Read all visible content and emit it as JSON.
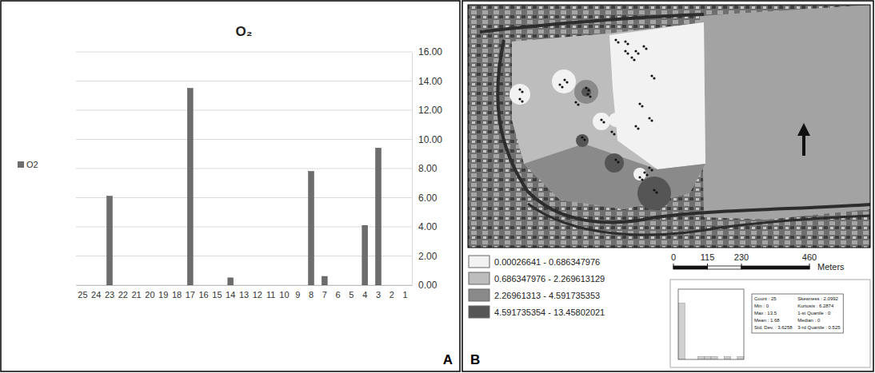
{
  "chart_data": [
    {
      "type": "bar",
      "title": "O₂",
      "categories": [
        "25",
        "24",
        "23",
        "22",
        "21",
        "20",
        "19",
        "18",
        "17",
        "16",
        "15",
        "14",
        "13",
        "12",
        "11",
        "10",
        "9",
        "8",
        "7",
        "6",
        "5",
        "4",
        "3",
        "2",
        "1"
      ],
      "series": [
        {
          "name": "O2",
          "color": "#6d6d6d",
          "values": [
            0,
            0,
            6.1,
            0,
            0,
            0,
            0,
            0,
            13.5,
            0,
            0,
            0.5,
            0,
            0,
            0,
            0,
            0,
            7.8,
            0.6,
            0,
            0,
            4.1,
            9.4,
            0,
            0
          ]
        }
      ],
      "ylim": [
        0,
        16
      ],
      "yticks": [
        {
          "value": 0,
          "label": "0.00"
        },
        {
          "value": 2,
          "label": "2.00"
        },
        {
          "value": 4,
          "label": "4.00"
        },
        {
          "value": 6,
          "label": "6.00"
        },
        {
          "value": 8,
          "label": "8.00"
        },
        {
          "value": 10,
          "label": "10.00"
        },
        {
          "value": 12,
          "label": "12.00"
        },
        {
          "value": 14,
          "label": "14.00"
        },
        {
          "value": 16,
          "label": "16.00"
        }
      ],
      "grid": true,
      "legend": "left"
    },
    {
      "type": "histogram",
      "bins": [
        0,
        1.35,
        2.7,
        4.05,
        5.4,
        6.75,
        8.1,
        9.45,
        10.8,
        12.15,
        13.5
      ],
      "counts": [
        20,
        0,
        0,
        1,
        1,
        1,
        0,
        1,
        0,
        1
      ],
      "color": "#d0d0d0",
      "xlim": [
        0,
        13.5
      ],
      "ylim": [
        0,
        25
      ],
      "tick_labels": false
    }
  ],
  "panels": [
    "A",
    "B"
  ],
  "map": {
    "legend": [
      {
        "label": "0.00026641 - 0.686347976",
        "color": "#f2f2f2"
      },
      {
        "label": "0.686347976 - 2.269613129",
        "color": "#bdbdbd"
      },
      {
        "label": "2.26961313 - 4.591735353",
        "color": "#8a8a8a"
      },
      {
        "label": "4.591735354 - 13.45802021",
        "color": "#555555"
      }
    ],
    "scale_bar": {
      "ticks": [
        0,
        115,
        230,
        460
      ],
      "unit": "Meters"
    },
    "stats": [
      [
        "Count : 25",
        "Skewness : 2.0992"
      ],
      [
        "Min : 0",
        "Kurtosis : 6.2874"
      ],
      [
        "Max : 13.5",
        "1-st Quartile : 0"
      ],
      [
        "Mean : 1.68",
        "Median : 0"
      ],
      [
        "Std. Dev. : 3.6258",
        "3-rd Quartile : 0.525"
      ]
    ]
  }
}
